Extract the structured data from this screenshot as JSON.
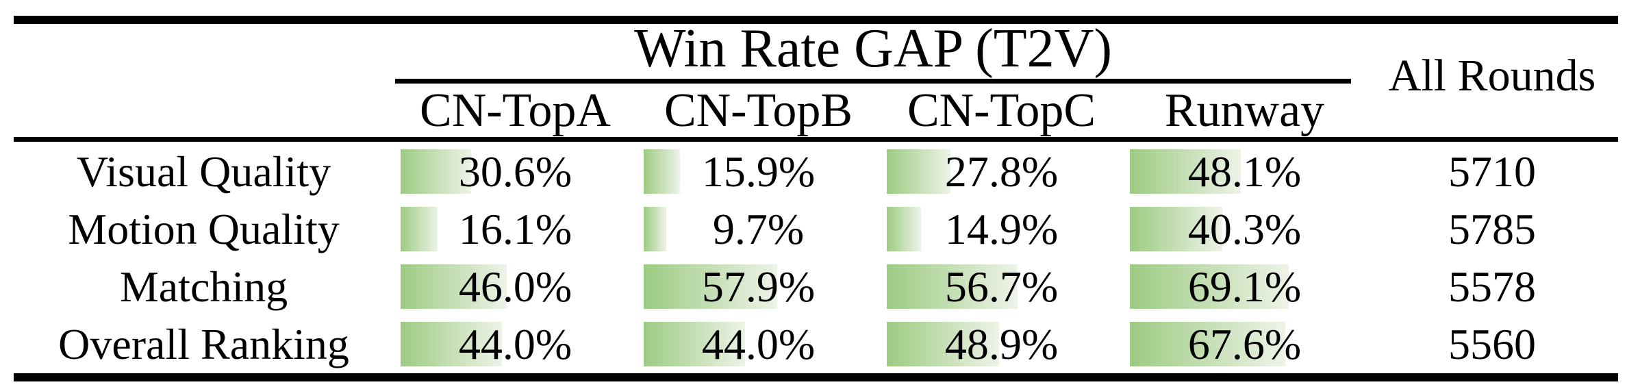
{
  "table": {
    "group_header": "Win Rate GAP (T2V)",
    "all_rounds_header": "All Rounds",
    "columns": [
      "CN-TopA",
      "CN-TopB",
      "CN-TopC",
      "Runway"
    ],
    "rows": [
      {
        "label": "Visual Quality",
        "values": [
          "30.6%",
          "15.9%",
          "27.8%",
          "48.1%"
        ],
        "pcts": [
          30.6,
          15.9,
          27.8,
          48.1
        ],
        "all_rounds": "5710"
      },
      {
        "label": "Motion Quality",
        "values": [
          "16.1%",
          "9.7%",
          "14.9%",
          "40.3%"
        ],
        "pcts": [
          16.1,
          9.7,
          14.9,
          40.3
        ],
        "all_rounds": "5785"
      },
      {
        "label": "Matching",
        "values": [
          "46.0%",
          "57.9%",
          "56.7%",
          "69.1%"
        ],
        "pcts": [
          46.0,
          57.9,
          56.7,
          69.1
        ],
        "all_rounds": "5578"
      },
      {
        "label": "Overall Ranking",
        "values": [
          "44.0%",
          "44.0%",
          "48.9%",
          "67.6%"
        ],
        "pcts": [
          44.0,
          44.0,
          48.9,
          67.6
        ],
        "all_rounds": "5560"
      }
    ],
    "colors": {
      "bar_gradient_start": "#9ccb82",
      "bar_gradient_end": "#eef3e8",
      "rule": "#000000",
      "background": "#ffffff",
      "text": "#000000"
    }
  },
  "chart_data": {
    "type": "table",
    "title": "Win Rate GAP (T2V)",
    "categories": [
      "CN-TopA",
      "CN-TopB",
      "CN-TopC",
      "Runway"
    ],
    "series": [
      {
        "name": "Visual Quality",
        "values": [
          30.6,
          15.9,
          27.8,
          48.1
        ],
        "all_rounds": 5710
      },
      {
        "name": "Motion Quality",
        "values": [
          16.1,
          9.7,
          14.9,
          40.3
        ],
        "all_rounds": 5785
      },
      {
        "name": "Matching",
        "values": [
          46.0,
          57.9,
          56.7,
          69.1
        ],
        "all_rounds": 5578
      },
      {
        "name": "Overall Ranking",
        "values": [
          44.0,
          44.0,
          48.9,
          67.6
        ],
        "all_rounds": 5560
      }
    ],
    "value_unit": "%",
    "bar_scale_range": [
      0,
      100
    ],
    "extra_column": "All Rounds"
  }
}
